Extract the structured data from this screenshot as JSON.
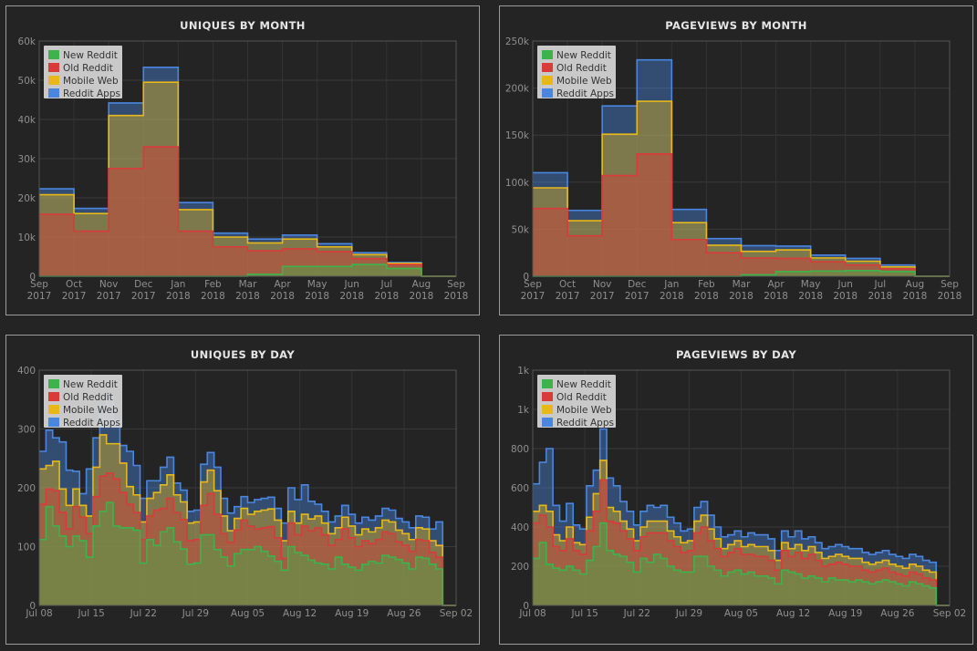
{
  "legend_colors": {
    "New Reddit": "#3cb44b",
    "Old Reddit": "#d93a3a",
    "Mobile Web": "#e8b818",
    "Reddit Apps": "#4a86e0"
  },
  "chart_data": [
    {
      "type": "area",
      "title": "UNIQUES BY MONTH",
      "stacked": true,
      "step": true,
      "x_ticks": [
        "Sep\n2017",
        "Oct\n2017",
        "Nov\n2017",
        "Dec\n2017",
        "Jan\n2018",
        "Feb\n2018",
        "Mar\n2018",
        "Apr\n2018",
        "May\n2018",
        "Jun\n2018",
        "Jul\n2018",
        "Aug\n2018",
        "Sep\n2018"
      ],
      "y_ticks": [
        "0",
        "10k",
        "20k",
        "30k",
        "40k",
        "50k",
        "60k"
      ],
      "ylim": [
        0,
        60000
      ],
      "legend": [
        "New Reddit",
        "Old Reddit",
        "Mobile Web",
        "Reddit Apps"
      ],
      "legend_position": "top-left",
      "series": [
        {
          "name": "New Reddit",
          "values": [
            0,
            0,
            0,
            0,
            0,
            0,
            500,
            2500,
            2500,
            3000,
            2000,
            0
          ]
        },
        {
          "name": "Old Reddit",
          "values": [
            15800,
            11500,
            27500,
            33000,
            11500,
            7500,
            6000,
            4500,
            3800,
            1500,
            1000,
            0
          ]
        },
        {
          "name": "Mobile Web",
          "values": [
            5000,
            4500,
            13500,
            16500,
            5500,
            2500,
            2000,
            2500,
            1200,
            1000,
            300,
            0
          ]
        },
        {
          "name": "Reddit Apps",
          "values": [
            1500,
            1300,
            3200,
            3800,
            1800,
            1000,
            1000,
            1000,
            800,
            500,
            200,
            0
          ]
        }
      ]
    },
    {
      "type": "area",
      "title": "PAGEVIEWS BY MONTH",
      "stacked": true,
      "step": true,
      "x_ticks": [
        "Sep\n2017",
        "Oct\n2017",
        "Nov\n2017",
        "Dec\n2017",
        "Jan\n2018",
        "Feb\n2018",
        "Mar\n2018",
        "Apr\n2018",
        "May\n2018",
        "Jun\n2018",
        "Jul\n2018",
        "Aug\n2018",
        "Sep\n2018"
      ],
      "y_ticks": [
        "0",
        "50k",
        "100k",
        "150k",
        "200k",
        "250k"
      ],
      "ylim": [
        0,
        250000
      ],
      "legend": [
        "New Reddit",
        "Old Reddit",
        "Mobile Web",
        "Reddit Apps"
      ],
      "legend_position": "top-left",
      "series": [
        {
          "name": "New Reddit",
          "values": [
            0,
            0,
            0,
            0,
            0,
            0,
            1500,
            5000,
            5500,
            6000,
            5000,
            0
          ]
        },
        {
          "name": "Old Reddit",
          "values": [
            72000,
            43000,
            107000,
            130000,
            39000,
            25000,
            18000,
            14000,
            10000,
            6000,
            3000,
            0
          ]
        },
        {
          "name": "Mobile Web",
          "values": [
            22000,
            16000,
            44000,
            56000,
            18000,
            8000,
            7000,
            9000,
            4000,
            4000,
            2000,
            0
          ]
        },
        {
          "name": "Reddit Apps",
          "values": [
            16000,
            11000,
            30000,
            44000,
            14000,
            7000,
            6000,
            4000,
            3000,
            3000,
            2000,
            0
          ]
        }
      ]
    },
    {
      "type": "area",
      "title": "UNIQUES BY DAY",
      "stacked": true,
      "step": true,
      "x_ticks": [
        "Jul 08",
        "Jul 15",
        "Jul 22",
        "Jul 29",
        "Aug 05",
        "Aug 12",
        "Aug 19",
        "Aug 26",
        "Sep 02"
      ],
      "y_ticks": [
        "0",
        "100",
        "200",
        "300",
        "400"
      ],
      "ylim": [
        0,
        400
      ],
      "legend": [
        "New Reddit",
        "Old Reddit",
        "Mobile Web",
        "Reddit Apps"
      ],
      "legend_position": "top-left",
      "series": [
        {
          "name": "New Reddit",
          "values": [
            112,
            168,
            135,
            118,
            100,
            118,
            110,
            82,
            135,
            160,
            175,
            135,
            132,
            132,
            128,
            72,
            112,
            102,
            125,
            132,
            108,
            96,
            70,
            72,
            120,
            120,
            95,
            82,
            67,
            88,
            95,
            95,
            100,
            92,
            84,
            75,
            60,
            100,
            90,
            85,
            77,
            72,
            70,
            62,
            82,
            70,
            65,
            60,
            70,
            75,
            72,
            85,
            82,
            78,
            72,
            62,
            82,
            80,
            70,
            62,
            0,
            0
          ]
        },
        {
          "name": "Old Reddit",
          "values": [
            60,
            30,
            60,
            40,
            30,
            50,
            40,
            40,
            50,
            60,
            50,
            80,
            60,
            40,
            30,
            40,
            40,
            60,
            40,
            50,
            50,
            50,
            40,
            40,
            50,
            70,
            60,
            40,
            40,
            40,
            50,
            40,
            30,
            40,
            50,
            40,
            20,
            40,
            30,
            50,
            50,
            60,
            50,
            40,
            30,
            60,
            50,
            40,
            40,
            30,
            40,
            40,
            40,
            30,
            30,
            30,
            30,
            30,
            20,
            20,
            0,
            0
          ]
        },
        {
          "name": "Mobile Web",
          "values": [
            60,
            40,
            50,
            40,
            40,
            30,
            20,
            30,
            50,
            70,
            50,
            60,
            50,
            30,
            30,
            30,
            30,
            30,
            40,
            40,
            30,
            30,
            30,
            30,
            40,
            40,
            40,
            30,
            20,
            20,
            20,
            20,
            30,
            30,
            30,
            30,
            30,
            20,
            20,
            20,
            20,
            20,
            20,
            20,
            20,
            20,
            20,
            20,
            20,
            20,
            20,
            20,
            20,
            20,
            20,
            20,
            20,
            20,
            20,
            20,
            0,
            0
          ]
        },
        {
          "name": "Reddit Apps",
          "values": [
            30,
            60,
            40,
            80,
            60,
            30,
            20,
            80,
            50,
            50,
            80,
            40,
            30,
            60,
            50,
            40,
            30,
            20,
            30,
            30,
            20,
            20,
            20,
            20,
            30,
            30,
            40,
            30,
            30,
            20,
            20,
            20,
            20,
            20,
            20,
            20,
            30,
            40,
            40,
            50,
            30,
            20,
            20,
            20,
            20,
            20,
            20,
            20,
            20,
            20,
            20,
            20,
            20,
            20,
            20,
            20,
            20,
            20,
            20,
            40,
            0,
            0
          ]
        }
      ]
    },
    {
      "type": "area",
      "title": "PAGEVIEWS BY DAY",
      "stacked": true,
      "step": true,
      "x_ticks": [
        "Jul 08",
        "Jul 15",
        "Jul 22",
        "Jul 29",
        "Aug 05",
        "Aug 12",
        "Aug 19",
        "Aug 26",
        "Sep 02"
      ],
      "y_ticks": [
        "0",
        "200",
        "400",
        "600",
        "800",
        "1k",
        "1k"
      ],
      "ylim": [
        0,
        1200
      ],
      "legend": [
        "New Reddit",
        "Old Reddit",
        "Mobile Web",
        "Reddit Apps"
      ],
      "legend_position": "top-left",
      "series": [
        {
          "name": "New Reddit",
          "values": [
            240,
            320,
            210,
            190,
            180,
            200,
            180,
            160,
            230,
            300,
            420,
            280,
            260,
            250,
            220,
            170,
            240,
            220,
            260,
            240,
            200,
            180,
            170,
            170,
            250,
            250,
            200,
            180,
            150,
            170,
            180,
            160,
            170,
            150,
            150,
            140,
            110,
            180,
            170,
            160,
            140,
            150,
            140,
            120,
            140,
            130,
            130,
            120,
            130,
            120,
            110,
            120,
            130,
            120,
            110,
            100,
            120,
            110,
            100,
            90,
            0,
            0
          ]
        },
        {
          "name": "Old Reddit",
          "values": [
            180,
            140,
            190,
            110,
            100,
            140,
            100,
            100,
            150,
            180,
            220,
            150,
            160,
            130,
            120,
            110,
            110,
            150,
            110,
            130,
            130,
            120,
            100,
            110,
            120,
            150,
            130,
            110,
            100,
            100,
            110,
            100,
            90,
            100,
            100,
            90,
            70,
            100,
            80,
            110,
            100,
            110,
            90,
            80,
            70,
            90,
            80,
            80,
            70,
            60,
            60,
            60,
            60,
            50,
            50,
            50,
            50,
            50,
            40,
            40,
            0,
            0
          ]
        },
        {
          "name": "Mobile Web",
          "values": [
            60,
            50,
            80,
            60,
            50,
            60,
            40,
            50,
            70,
            90,
            100,
            70,
            60,
            50,
            50,
            50,
            50,
            60,
            60,
            60,
            50,
            50,
            50,
            50,
            60,
            60,
            60,
            50,
            40,
            40,
            40,
            40,
            50,
            50,
            50,
            50,
            50,
            40,
            40,
            40,
            40,
            40,
            40,
            40,
            40,
            40,
            40,
            40,
            40,
            40,
            40,
            40,
            40,
            40,
            40,
            40,
            40,
            40,
            40,
            40,
            0,
            0
          ]
        },
        {
          "name": "Reddit Apps",
          "values": [
            140,
            220,
            320,
            150,
            100,
            120,
            90,
            80,
            160,
            120,
            160,
            150,
            130,
            100,
            90,
            80,
            80,
            80,
            70,
            80,
            70,
            70,
            60,
            60,
            70,
            70,
            70,
            60,
            60,
            50,
            50,
            50,
            60,
            60,
            60,
            60,
            50,
            60,
            60,
            70,
            60,
            50,
            50,
            50,
            50,
            50,
            50,
            50,
            50,
            50,
            50,
            50,
            50,
            50,
            50,
            50,
            50,
            50,
            50,
            50,
            0,
            0
          ]
        }
      ]
    }
  ]
}
